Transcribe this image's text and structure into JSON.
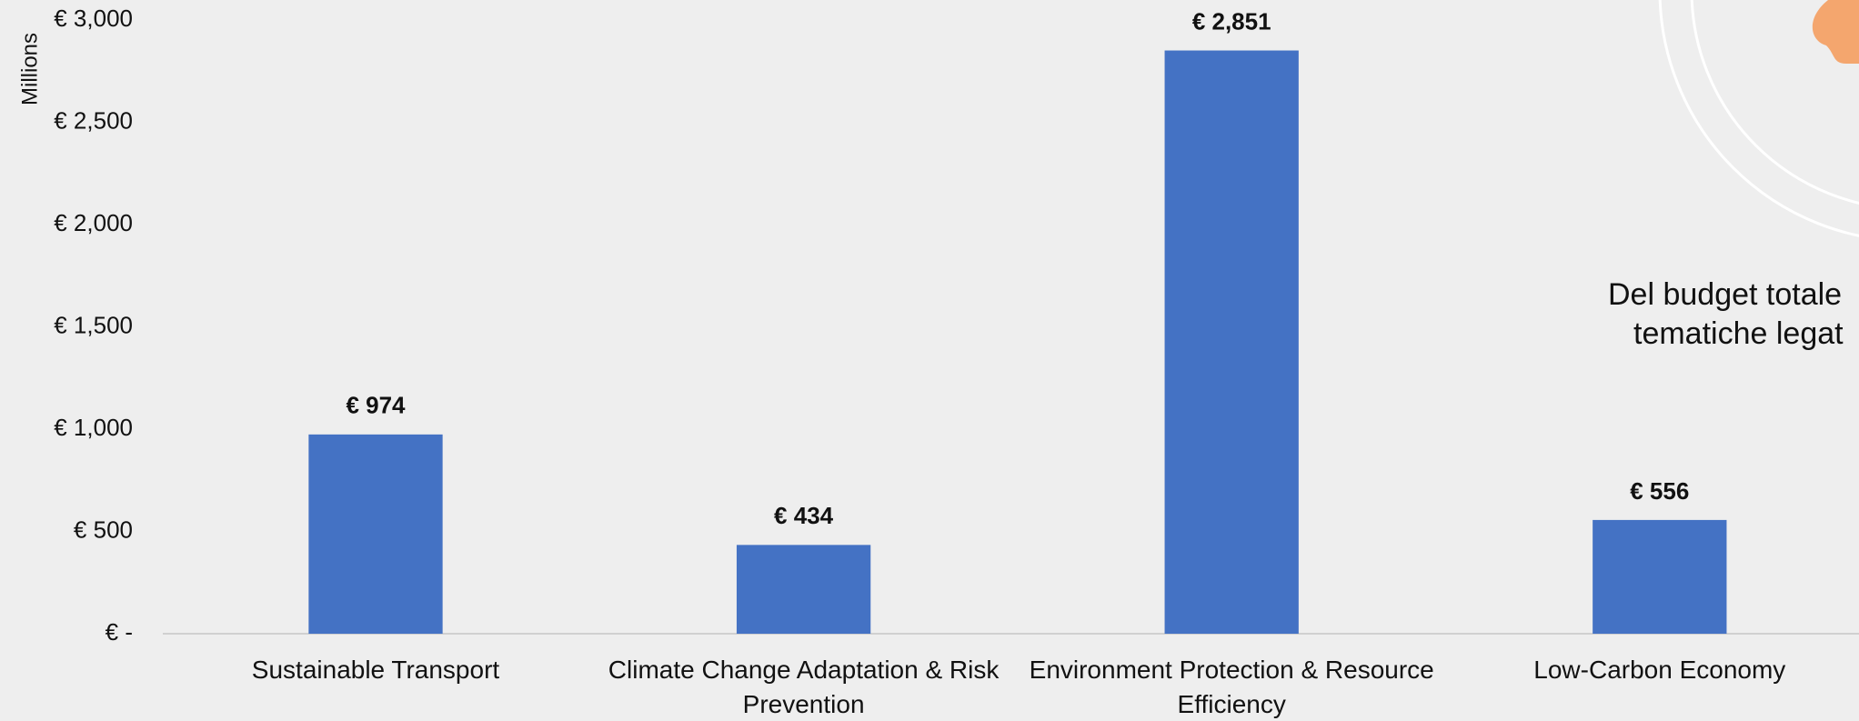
{
  "chart_data": {
    "type": "bar",
    "y_label": "Millions",
    "categories": [
      "Sustainable Transport",
      "Climate Change Adaptation & Risk Prevention",
      "Environment Protection & Resource Efficiency",
      "Low-Carbon Economy"
    ],
    "values": [
      974,
      434,
      2851,
      556
    ],
    "value_labels": [
      "€ 974",
      "€ 434",
      "€ 2,851",
      "€ 556"
    ],
    "color": "#4472c4",
    "ylim": [
      0,
      3000
    ],
    "yticks": [
      {
        "value": 0,
        "label": "€ -"
      },
      {
        "value": 500,
        "label": "€ 500"
      },
      {
        "value": 1000,
        "label": "€ 1,000"
      },
      {
        "value": 1500,
        "label": "€ 1,500"
      },
      {
        "value": 2000,
        "label": "€ 2,000"
      },
      {
        "value": 2500,
        "label": "€ 2,500"
      },
      {
        "value": 3000,
        "label": "€ 3,000"
      }
    ],
    "grid": false
  },
  "side_text": [
    "Del budget totale",
    "tematiche legat"
  ]
}
